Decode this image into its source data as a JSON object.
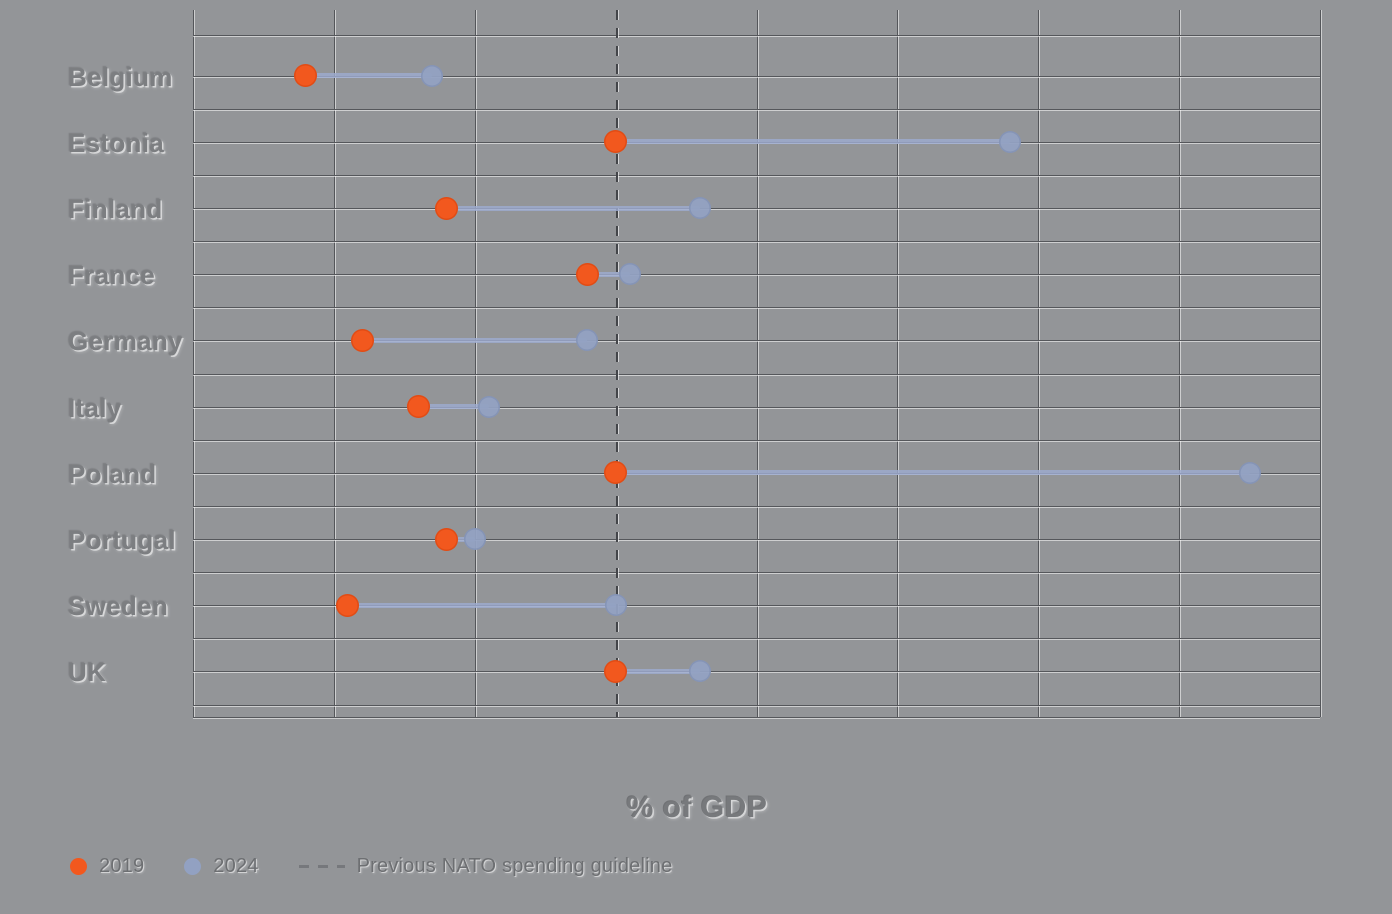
{
  "chart_data": {
    "type": "dumbbell",
    "title": "",
    "xlabel": "% of GDP",
    "categories": [
      "Belgium",
      "Estonia",
      "Finland",
      "France",
      "Germany",
      "Italy",
      "Poland",
      "Portugal",
      "Sweden",
      "UK"
    ],
    "series": [
      {
        "name": "2019",
        "color": "#f2581e",
        "values": [
          0.9,
          2.0,
          1.4,
          1.9,
          1.1,
          1.3,
          2.0,
          1.4,
          1.05,
          2.0
        ]
      },
      {
        "name": "2024",
        "color": "#92a1c2",
        "values": [
          1.35,
          3.4,
          2.3,
          2.05,
          1.9,
          1.55,
          4.25,
          1.5,
          2.0,
          2.3
        ]
      }
    ],
    "guideline": {
      "label": "Previous NATO spending guideline",
      "x": 2.0,
      "style": "dashed"
    },
    "xlim": [
      0.5,
      4.5
    ],
    "grid_step": 0.5,
    "x_tick_labels_visible": false,
    "grid": "on",
    "legend_position": "bottom-left",
    "colors": {
      "background": "#939598",
      "grid": "#54565a",
      "grid_highlight": "#ffffff",
      "guideline": "#434549",
      "connector": "#9dabcf",
      "label_text": "#7c7e81"
    }
  }
}
